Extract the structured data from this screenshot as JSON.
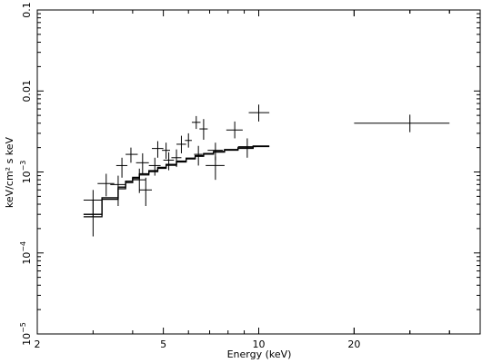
{
  "chart_data": {
    "type": "scatter",
    "xlabel": "Energy (keV)",
    "ylabel": "keV/cm² s keV",
    "xscale": "log",
    "yscale": "log",
    "xlim": [
      2,
      50
    ],
    "ylim": [
      1e-05,
      0.1
    ],
    "x_tick_labels": [
      "2",
      "5",
      "10",
      "20"
    ],
    "x_tick_values": [
      2,
      5,
      10,
      20
    ],
    "y_tick_labels": [
      {
        "value": 0.1,
        "base": "0.1",
        "exp": ""
      },
      {
        "value": 0.01,
        "base": "0.01",
        "exp": ""
      },
      {
        "value": 0.001,
        "base": "10",
        "exp": "−3"
      },
      {
        "value": 0.0001,
        "base": "10",
        "exp": "−4"
      },
      {
        "value": 1e-05,
        "base": "10",
        "exp": "−5"
      }
    ],
    "grid": false,
    "series": [
      {
        "kind": "data",
        "points": [
          {
            "x": 3.0,
            "y": 0.00045,
            "xlo": 2.8,
            "xhi": 3.2,
            "ylo": 0.00028,
            "yhi": 0.0006
          },
          {
            "x": 3.0,
            "y": 0.0003,
            "xlo": 2.8,
            "xhi": 3.2,
            "ylo": 0.00016,
            "yhi": 0.00045
          },
          {
            "x": 3.3,
            "y": 0.00072,
            "xlo": 3.1,
            "xhi": 3.5,
            "ylo": 0.0005,
            "yhi": 0.00095
          },
          {
            "x": 3.6,
            "y": 0.0007,
            "xlo": 3.4,
            "xhi": 3.8,
            "ylo": 0.00038,
            "yhi": 0.0009
          },
          {
            "x": 3.7,
            "y": 0.0012,
            "xlo": 3.55,
            "xhi": 3.85,
            "ylo": 0.00085,
            "yhi": 0.0015
          },
          {
            "x": 3.95,
            "y": 0.00165,
            "xlo": 3.8,
            "xhi": 4.15,
            "ylo": 0.0013,
            "yhi": 0.002
          },
          {
            "x": 4.2,
            "y": 0.0008,
            "xlo": 4.0,
            "xhi": 4.4,
            "ylo": 0.00055,
            "yhi": 0.0011
          },
          {
            "x": 4.3,
            "y": 0.0013,
            "xlo": 4.1,
            "xhi": 4.5,
            "ylo": 0.00095,
            "yhi": 0.0017
          },
          {
            "x": 4.4,
            "y": 0.0006,
            "xlo": 4.2,
            "xhi": 4.6,
            "ylo": 0.00038,
            "yhi": 0.00085
          },
          {
            "x": 4.7,
            "y": 0.0012,
            "xlo": 4.5,
            "xhi": 4.9,
            "ylo": 0.0009,
            "yhi": 0.0015
          },
          {
            "x": 4.8,
            "y": 0.00195,
            "xlo": 4.6,
            "xhi": 5.0,
            "ylo": 0.0015,
            "yhi": 0.0024
          },
          {
            "x": 5.1,
            "y": 0.00185,
            "xlo": 4.95,
            "xhi": 5.25,
            "ylo": 0.00145,
            "yhi": 0.0023
          },
          {
            "x": 5.2,
            "y": 0.0014,
            "xlo": 5.0,
            "xhi": 5.4,
            "ylo": 0.00105,
            "yhi": 0.00175
          },
          {
            "x": 5.5,
            "y": 0.0015,
            "xlo": 5.3,
            "xhi": 5.7,
            "ylo": 0.00115,
            "yhi": 0.0019
          },
          {
            "x": 5.7,
            "y": 0.0022,
            "xlo": 5.5,
            "xhi": 5.9,
            "ylo": 0.0017,
            "yhi": 0.0028
          },
          {
            "x": 6.0,
            "y": 0.00245,
            "xlo": 5.85,
            "xhi": 6.15,
            "ylo": 0.002,
            "yhi": 0.003
          },
          {
            "x": 6.35,
            "y": 0.0041,
            "xlo": 6.15,
            "xhi": 6.55,
            "ylo": 0.0034,
            "yhi": 0.0049
          },
          {
            "x": 6.45,
            "y": 0.00165,
            "xlo": 6.25,
            "xhi": 6.65,
            "ylo": 0.0012,
            "yhi": 0.0021
          },
          {
            "x": 6.7,
            "y": 0.0034,
            "xlo": 6.5,
            "xhi": 6.9,
            "ylo": 0.0025,
            "yhi": 0.0045
          },
          {
            "x": 7.3,
            "y": 0.00185,
            "xlo": 6.9,
            "xhi": 7.7,
            "ylo": 0.0014,
            "yhi": 0.0023
          },
          {
            "x": 7.3,
            "y": 0.0012,
            "xlo": 6.8,
            "xhi": 7.8,
            "ylo": 0.0008,
            "yhi": 0.00155
          },
          {
            "x": 8.4,
            "y": 0.0033,
            "xlo": 7.9,
            "xhi": 8.9,
            "ylo": 0.0026,
            "yhi": 0.0042
          },
          {
            "x": 9.2,
            "y": 0.00205,
            "xlo": 8.6,
            "xhi": 9.8,
            "ylo": 0.0015,
            "yhi": 0.0026
          },
          {
            "x": 10.0,
            "y": 0.0054,
            "xlo": 9.3,
            "xhi": 10.8,
            "ylo": 0.0042,
            "yhi": 0.0068
          },
          {
            "x": 30.0,
            "y": 0.004,
            "xlo": 20.0,
            "xhi": 40.0,
            "ylo": 0.0031,
            "yhi": 0.0051
          }
        ]
      },
      {
        "kind": "model",
        "steps": [
          {
            "xlo": 2.8,
            "xhi": 3.2,
            "y": 0.00028
          },
          {
            "xlo": 3.2,
            "xhi": 3.6,
            "y": 0.00046
          },
          {
            "xlo": 3.6,
            "xhi": 3.8,
            "y": 0.00062
          },
          {
            "xlo": 3.8,
            "xhi": 4.0,
            "y": 0.00074
          },
          {
            "xlo": 4.0,
            "xhi": 4.2,
            "y": 0.00083
          },
          {
            "xlo": 4.2,
            "xhi": 4.5,
            "y": 0.00092
          },
          {
            "xlo": 4.5,
            "xhi": 4.8,
            "y": 0.00101
          },
          {
            "xlo": 4.8,
            "xhi": 5.1,
            "y": 0.00111
          },
          {
            "xlo": 5.1,
            "xhi": 5.5,
            "y": 0.00121
          },
          {
            "xlo": 5.5,
            "xhi": 5.9,
            "y": 0.00133
          },
          {
            "xlo": 5.9,
            "xhi": 6.3,
            "y": 0.00145
          },
          {
            "xlo": 6.3,
            "xhi": 6.7,
            "y": 0.00156
          },
          {
            "xlo": 6.7,
            "xhi": 7.2,
            "y": 0.00166
          },
          {
            "xlo": 7.2,
            "xhi": 7.8,
            "y": 0.00176
          },
          {
            "xlo": 7.8,
            "xhi": 8.6,
            "y": 0.00186
          },
          {
            "xlo": 8.6,
            "xhi": 9.6,
            "y": 0.00196
          },
          {
            "xlo": 9.6,
            "xhi": 10.8,
            "y": 0.00206
          }
        ]
      },
      {
        "kind": "model",
        "steps": [
          {
            "xlo": 2.8,
            "xhi": 3.2,
            "y": 0.0003
          },
          {
            "xlo": 3.2,
            "xhi": 3.6,
            "y": 0.00048
          },
          {
            "xlo": 3.6,
            "xhi": 3.8,
            "y": 0.00065
          },
          {
            "xlo": 3.8,
            "xhi": 4.0,
            "y": 0.00077
          },
          {
            "xlo": 4.0,
            "xhi": 4.2,
            "y": 0.00086
          },
          {
            "xlo": 4.2,
            "xhi": 4.5,
            "y": 0.00095
          },
          {
            "xlo": 4.5,
            "xhi": 4.8,
            "y": 0.00104
          },
          {
            "xlo": 4.8,
            "xhi": 5.1,
            "y": 0.00114
          },
          {
            "xlo": 5.1,
            "xhi": 5.5,
            "y": 0.00124
          },
          {
            "xlo": 5.5,
            "xhi": 5.9,
            "y": 0.00136
          },
          {
            "xlo": 5.9,
            "xhi": 6.3,
            "y": 0.00148
          },
          {
            "xlo": 6.3,
            "xhi": 6.7,
            "y": 0.00159
          },
          {
            "xlo": 6.7,
            "xhi": 7.2,
            "y": 0.00169
          },
          {
            "xlo": 7.2,
            "xhi": 7.8,
            "y": 0.00179
          },
          {
            "xlo": 7.8,
            "xhi": 8.6,
            "y": 0.00189
          },
          {
            "xlo": 8.6,
            "xhi": 9.6,
            "y": 0.00199
          },
          {
            "xlo": 9.6,
            "xhi": 10.8,
            "y": 0.00209
          }
        ]
      }
    ]
  }
}
